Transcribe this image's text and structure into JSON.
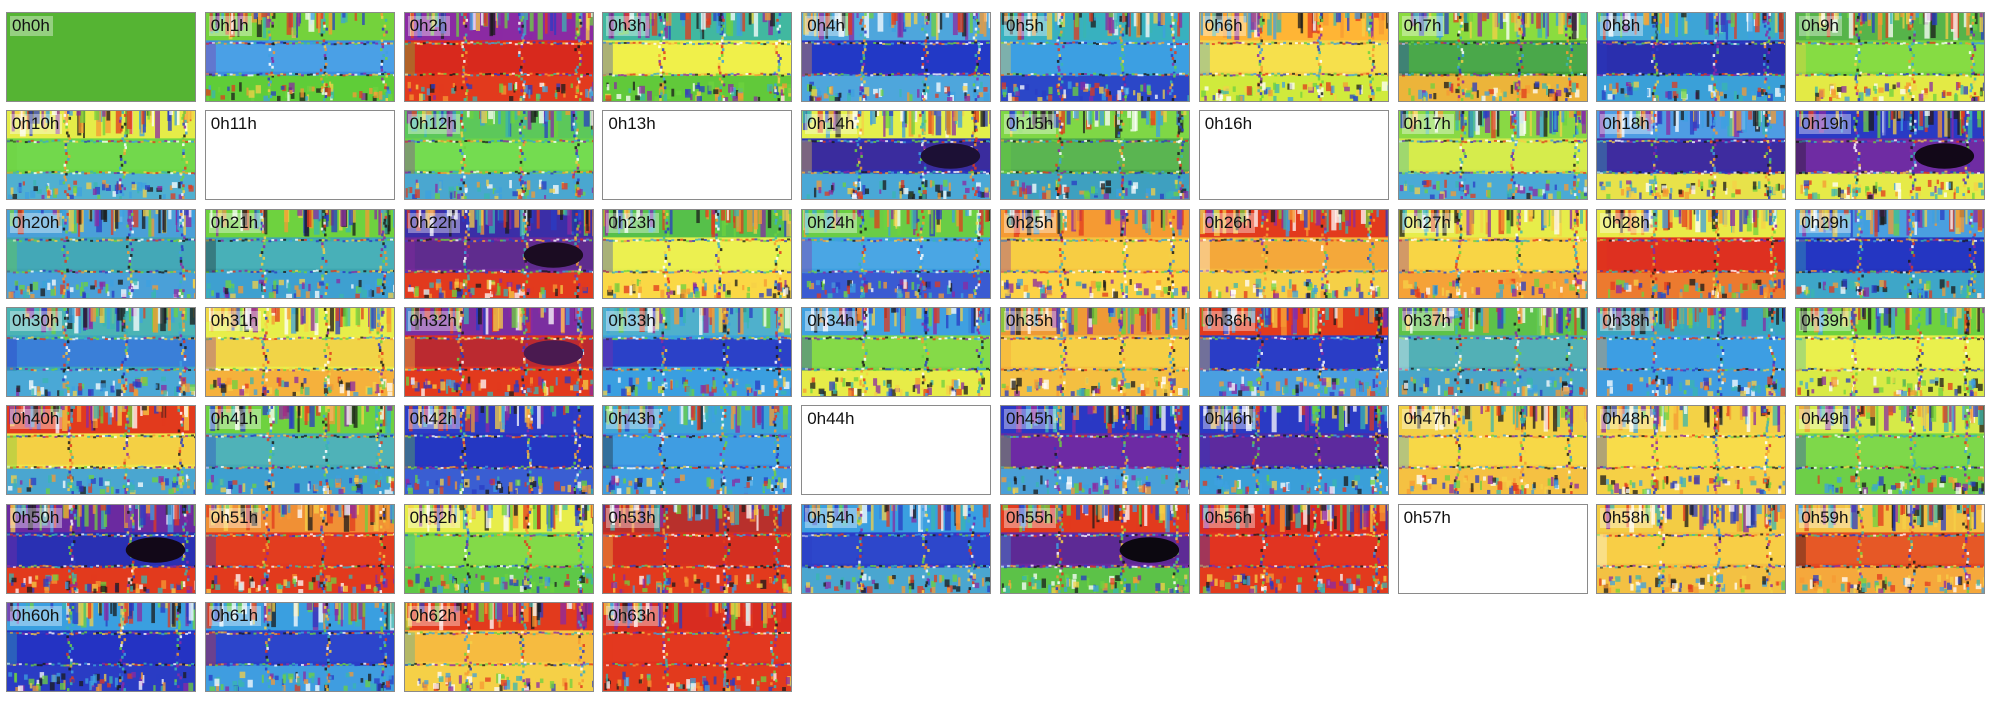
{
  "grid": {
    "columns": 10,
    "tiles": [
      {
        "label": "0h0h",
        "base": "#55b433",
        "solid": true
      },
      {
        "label": "0h1h",
        "base": "#3d8ee0",
        "band": "#4aa0e6",
        "top": "#74d23c",
        "bottom": "#5fcd38"
      },
      {
        "label": "0h2h",
        "base": "#e02a1c",
        "band": "#d8291d",
        "top": "#8b2aa3",
        "bottom": "#e23a1d"
      },
      {
        "label": "0h3h",
        "base": "#e9ef4a",
        "band": "#f0f04a",
        "top": "#41b8a0",
        "bottom": "#61c93a"
      },
      {
        "label": "0h4h",
        "base": "#2a35c8",
        "band": "#2239c6",
        "top": "#4ea6dc",
        "bottom": "#4ea6dc"
      },
      {
        "label": "0h5h",
        "base": "#3aa0e0",
        "band": "#3c9fe2",
        "top": "#38b1bf",
        "bottom": "#2b47c8"
      },
      {
        "label": "0h6h",
        "base": "#f3d44a",
        "band": "#f6e04c",
        "top": "#ffb535",
        "bottom": "#d0ea3c"
      },
      {
        "label": "0h7h",
        "base": "#3f9a3b",
        "band": "#4aa84a",
        "top": "#8bdc3f",
        "bottom": "#ecb43a"
      },
      {
        "label": "0h8h",
        "base": "#2832b5",
        "band": "#2a2fae",
        "top": "#3da4d6",
        "bottom": "#3aa0d8"
      },
      {
        "label": "0h9h",
        "base": "#7ad23e",
        "band": "#86dc43",
        "top": "#56b44a",
        "bottom": "#e3ea45"
      },
      {
        "label": "0h10h",
        "base": "#6ed644",
        "band": "#72d84c",
        "top": "#e5ec48",
        "bottom": "#50b0d0"
      },
      {
        "label": "0h11h",
        "blank": true
      },
      {
        "label": "0h12h",
        "base": "#6bd34a",
        "band": "#74dc50",
        "top": "#5cc85a",
        "bottom": "#4aa7d0"
      },
      {
        "label": "0h13h",
        "blank": true
      },
      {
        "label": "0h14h",
        "base": "#2c2fb5",
        "band": "#3a2c9e",
        "top": "#e4f04b",
        "bottom": "#4aa8d6",
        "blob": "#1c1035"
      },
      {
        "label": "0h15h",
        "base": "#4da84a",
        "band": "#5ab551",
        "top": "#7fd746",
        "bottom": "#3ea0c0"
      },
      {
        "label": "0h16h",
        "blank": true
      },
      {
        "label": "0h17h",
        "base": "#cfe84a",
        "band": "#d6ec4c",
        "top": "#89d944",
        "bottom": "#4aaad6"
      },
      {
        "label": "0h18h",
        "base": "#3a2ba7",
        "band": "#3e2c9f",
        "top": "#4e9ce3",
        "bottom": "#e8e24a"
      },
      {
        "label": "0h19h",
        "base": "#6e2ca0",
        "band": "#6f2ca3",
        "top": "#2a3ac4",
        "bottom": "#e6ea48",
        "blob": "#120818"
      },
      {
        "label": "0h20h",
        "base": "#3fa3b2",
        "band": "#43a8b7",
        "top": "#4aa0d8",
        "bottom": "#4aa0d8"
      },
      {
        "label": "0h21h",
        "base": "#3ea6b0",
        "band": "#48b0b8",
        "top": "#6ed23f",
        "bottom": "#3ea0d0"
      },
      {
        "label": "0h22h",
        "base": "#6a2a98",
        "band": "#5f2c8e",
        "top": "#3b2ea7",
        "bottom": "#e23a1d",
        "blob": "#1b0c22"
      },
      {
        "label": "0h23h",
        "base": "#e8ee4e",
        "band": "#ecf050",
        "top": "#56c04a",
        "bottom": "#fad845"
      },
      {
        "label": "0h24h",
        "base": "#3da0e0",
        "band": "#4aa6e4",
        "top": "#69cd46",
        "bottom": "#3a5bd2"
      },
      {
        "label": "0h25h",
        "base": "#f6c33f",
        "band": "#f7cd43",
        "top": "#f59a33",
        "bottom": "#fcd245"
      },
      {
        "label": "0h26h",
        "base": "#f5b73d",
        "band": "#f4a83a",
        "top": "#e23a1d",
        "bottom": "#f5d047"
      },
      {
        "label": "0h27h",
        "base": "#f6ce42",
        "band": "#f8d545",
        "top": "#e7ed4a",
        "bottom": "#f5a238"
      },
      {
        "label": "0h28h",
        "base": "#e0301f",
        "band": "#de3020",
        "top": "#e9ea48",
        "bottom": "#ec7a2f"
      },
      {
        "label": "0h29h",
        "base": "#2333be",
        "band": "#2436c2",
        "top": "#4a9fe0",
        "bottom": "#3ea6c8"
      },
      {
        "label": "0h30h",
        "base": "#3da4bf",
        "band": "#3a7fd8",
        "top": "#4bb4b4",
        "bottom": "#4aa8d6"
      },
      {
        "label": "0h31h",
        "base": "#eaed4a",
        "band": "#f1d447",
        "top": "#e7ee4a",
        "bottom": "#f5b13c"
      },
      {
        "label": "0h32h",
        "base": "#e0301f",
        "band": "#bb2a30",
        "top": "#7b2ea0",
        "bottom": "#e23a1d",
        "blob": "#4a1a50"
      },
      {
        "label": "0h33h",
        "base": "#3a9fe0",
        "band": "#2b41c8",
        "top": "#4fb0cc",
        "bottom": "#3a9fe0"
      },
      {
        "label": "0h34h",
        "base": "#7cd646",
        "band": "#85da48",
        "top": "#3fa0e0",
        "bottom": "#e7ec48"
      },
      {
        "label": "0h35h",
        "base": "#f4c042",
        "band": "#f6cf45",
        "top": "#ee9a36",
        "bottom": "#f4bf41"
      },
      {
        "label": "0h36h",
        "base": "#2a3dc6",
        "band": "#2a3dc6",
        "top": "#e23a1d",
        "bottom": "#4a9fe0"
      },
      {
        "label": "0h37h",
        "base": "#4ba6b2",
        "band": "#52b0b6",
        "top": "#5dc24a",
        "bottom": "#4aa6c8"
      },
      {
        "label": "0h38h",
        "base": "#3e9ee0",
        "band": "#3d9ee3",
        "top": "#3aa6c0",
        "bottom": "#3f9de0"
      },
      {
        "label": "0h39h",
        "base": "#e9ee4a",
        "band": "#eaf04d",
        "top": "#6ed23f",
        "bottom": "#d9ea46"
      },
      {
        "label": "0h40h",
        "base": "#f0e54a",
        "band": "#f4d044",
        "top": "#e23a1d",
        "bottom": "#4aa6d0"
      },
      {
        "label": "0h41h",
        "base": "#46a9b5",
        "band": "#4fb2b8",
        "top": "#6ed23f",
        "bottom": "#3ea0d0"
      },
      {
        "label": "0h42h",
        "base": "#2833bf",
        "band": "#2437c2",
        "top": "#2d3cc6",
        "bottom": "#3a5ed2"
      },
      {
        "label": "0h43h",
        "base": "#3a8ee0",
        "band": "#3f9de2",
        "top": "#3da4d6",
        "bottom": "#3f9de0"
      },
      {
        "label": "0h44h",
        "blank": true
      },
      {
        "label": "0h45h",
        "base": "#6b2aa0",
        "band": "#6d2aa4",
        "top": "#2a38c4",
        "bottom": "#4aa0d8"
      },
      {
        "label": "0h46h",
        "base": "#4a2ca9",
        "band": "#5d2a9e",
        "top": "#2a3ac4",
        "bottom": "#3a9fd8"
      },
      {
        "label": "0h47h",
        "base": "#f5cd44",
        "band": "#f7d847",
        "top": "#f1d045",
        "bottom": "#f5c142"
      },
      {
        "label": "0h48h",
        "base": "#f7d848",
        "band": "#f8dc4a",
        "top": "#f3d246",
        "bottom": "#f5d046"
      },
      {
        "label": "0h49h",
        "base": "#76d545",
        "band": "#7ed84a",
        "top": "#d6ea48",
        "bottom": "#6dcf48"
      },
      {
        "label": "0h50h",
        "base": "#2a2fb0",
        "band": "#2930b3",
        "top": "#6b2aa0",
        "bottom": "#e23a1d",
        "blob": "#120818"
      },
      {
        "label": "0h51h",
        "base": "#e2381f",
        "band": "#e23d1f",
        "top": "#f09035",
        "bottom": "#e23a1d"
      },
      {
        "label": "0h52h",
        "base": "#79d646",
        "band": "#83da48",
        "top": "#e7ed4a",
        "bottom": "#5ec848"
      },
      {
        "label": "0h53h",
        "base": "#d8301f",
        "band": "#d42f21",
        "top": "#b8302c",
        "bottom": "#e23a1d"
      },
      {
        "label": "0h54h",
        "base": "#2a3ec8",
        "band": "#2d47cb",
        "top": "#3a9fe0",
        "bottom": "#4aa6d0"
      },
      {
        "label": "0h55h",
        "base": "#6a2aa0",
        "band": "#5d2a95",
        "top": "#e23a1d",
        "bottom": "#5cc248",
        "blob": "#0c0810"
      },
      {
        "label": "0h56h",
        "base": "#e2301f",
        "band": "#e13421",
        "top": "#d92d20",
        "bottom": "#e23a1d"
      },
      {
        "label": "0h57h",
        "blank": true
      },
      {
        "label": "0h58h",
        "base": "#f4c042",
        "band": "#f8ce46",
        "top": "#f3cc44",
        "bottom": "#f3c143"
      },
      {
        "label": "0h59h",
        "base": "#e34b22",
        "band": "#e65826",
        "top": "#f3c143",
        "bottom": "#f5a83c"
      },
      {
        "label": "0h60h",
        "base": "#2330bf",
        "band": "#2433c3",
        "top": "#3a9fe0",
        "bottom": "#2a3cc4"
      },
      {
        "label": "0h61h",
        "base": "#2a3fc8",
        "band": "#2c45cb",
        "top": "#3a9fe0",
        "bottom": "#3f9de0"
      },
      {
        "label": "0h62h",
        "base": "#f7c744",
        "band": "#f6bb40",
        "top": "#e23a1d",
        "bottom": "#f5d047"
      },
      {
        "label": "0h63h",
        "base": "#e1301f",
        "band": "#e3381f",
        "top": "#d82c20",
        "bottom": "#e23a1d"
      }
    ]
  }
}
